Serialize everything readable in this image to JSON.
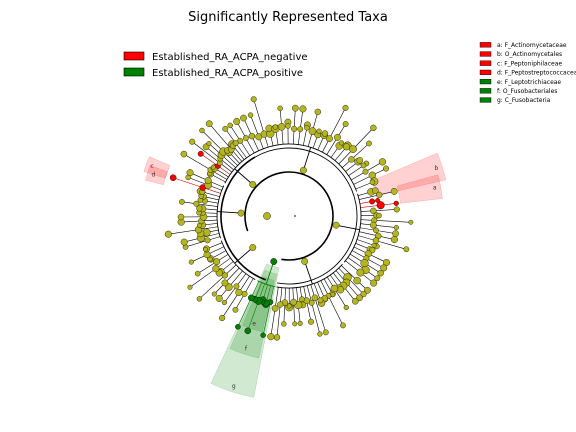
{
  "chart_data": {
    "type": "cladogram",
    "title": "Significantly Represented Taxa",
    "classes": [
      {
        "name": "Established_RA_ACPA_negative",
        "color": "#ff0000"
      },
      {
        "name": "Established_RA_ACPA_positive",
        "color": "#008000"
      }
    ],
    "key": [
      {
        "letter": "a",
        "label": "a: F_Actinomycetaceae",
        "color": "#ff0000"
      },
      {
        "letter": "b",
        "label": "b: O_Actinomycetales",
        "color": "#ff0000"
      },
      {
        "letter": "c",
        "label": "c: F_Peptoniphilaceae",
        "color": "#ff0000"
      },
      {
        "letter": "d",
        "label": "d: F_Peptostreptococcaceae",
        "color": "#ff0000"
      },
      {
        "letter": "e",
        "label": "e: F_Leptotrichiaceae",
        "color": "#008000"
      },
      {
        "letter": "f",
        "label": "f: O_Fusobacteriales",
        "color": "#008000"
      },
      {
        "letter": "g",
        "label": "g: C_Fusobacteria",
        "color": "#008000"
      }
    ],
    "highlighted_clades": [
      {
        "letter": "a",
        "angle": 349,
        "span": 9,
        "inner": 0.85,
        "outer": 1.17,
        "color": "#ff0000"
      },
      {
        "letter": "b",
        "angle": 342,
        "span": 10,
        "inner": 0.68,
        "outer": 1.22,
        "color": "#ff0000"
      },
      {
        "letter": "c",
        "angle": 200,
        "span": 6,
        "inner": 0.98,
        "outer": 1.15,
        "color": "#ff0000"
      },
      {
        "letter": "d",
        "angle": 197,
        "span": 6,
        "inner": 0.98,
        "outer": 1.12,
        "color": "#ff0000"
      },
      {
        "letter": "e",
        "angle": 108,
        "span": 10,
        "inner": 0.5,
        "outer": 0.9,
        "color": "#008000"
      },
      {
        "letter": "f",
        "angle": 108,
        "span": 12,
        "inner": 0.45,
        "outer": 1.1,
        "color": "#008000"
      },
      {
        "letter": "g",
        "angle": 108,
        "span": 14,
        "inner": 0.4,
        "outer": 1.4,
        "color": "#008000"
      }
    ],
    "node_color_default": "#b5b51e",
    "edge_color": "#000000"
  }
}
